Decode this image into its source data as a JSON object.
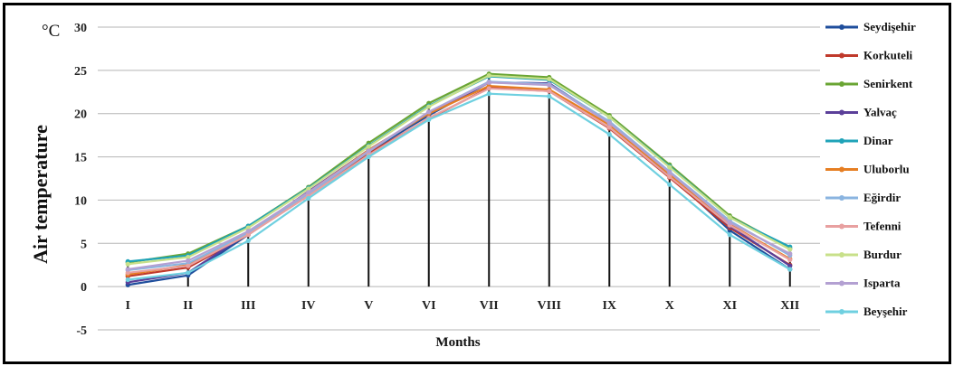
{
  "chart_data": {
    "type": "line",
    "title": "",
    "xlabel": "Months",
    "ylabel": "Air temperature",
    "yunit": "°C",
    "ylim": [
      -5,
      30
    ],
    "yticks": [
      -5,
      0,
      5,
      10,
      15,
      20,
      25,
      30
    ],
    "grid": "horizontal",
    "legend_position": "right",
    "categories": [
      "I",
      "II",
      "III",
      "IV",
      "V",
      "VI",
      "VII",
      "VIII",
      "IX",
      "X",
      "XI",
      "XII"
    ],
    "series": [
      {
        "name": "Seydişehir",
        "color": "#1f4e9c",
        "values": [
          0.2,
          1.3,
          6.0,
          10.8,
          15.6,
          19.8,
          23.6,
          23.5,
          18.9,
          12.9,
          6.5,
          2.0
        ]
      },
      {
        "name": "Korkuteli",
        "color": "#c0392b",
        "values": [
          1.2,
          2.2,
          6.0,
          10.7,
          15.4,
          19.4,
          23.0,
          22.6,
          18.3,
          12.6,
          6.8,
          2.5
        ]
      },
      {
        "name": "Senirkent",
        "color": "#6aa534",
        "values": [
          2.8,
          3.8,
          7.0,
          11.5,
          16.6,
          21.2,
          24.6,
          24.2,
          19.8,
          14.1,
          8.2,
          4.4
        ]
      },
      {
        "name": "Yalvaç",
        "color": "#5b3f99",
        "values": [
          0.5,
          1.6,
          6.2,
          11.0,
          15.8,
          20.0,
          23.6,
          23.5,
          19.0,
          13.0,
          7.0,
          2.4
        ]
      },
      {
        "name": "Dinar",
        "color": "#1fa3b8",
        "values": [
          2.9,
          3.6,
          7.0,
          11.4,
          16.3,
          20.9,
          24.3,
          23.9,
          19.6,
          13.9,
          8.0,
          4.6
        ]
      },
      {
        "name": "Uluborlu",
        "color": "#e67e22",
        "values": [
          1.4,
          2.5,
          6.3,
          10.9,
          15.8,
          20.0,
          23.2,
          22.8,
          18.7,
          13.0,
          7.2,
          3.2
        ]
      },
      {
        "name": "Eğirdir",
        "color": "#8ab4e0",
        "values": [
          1.9,
          2.7,
          6.2,
          10.7,
          15.6,
          20.2,
          23.7,
          23.4,
          19.1,
          13.3,
          7.6,
          3.6
        ]
      },
      {
        "name": "Tefenni",
        "color": "#e8a0a0",
        "values": [
          1.6,
          2.4,
          6.0,
          10.5,
          15.2,
          19.5,
          22.9,
          22.6,
          18.4,
          12.7,
          7.1,
          3.1
        ]
      },
      {
        "name": "Burdur",
        "color": "#c8e08a",
        "values": [
          2.6,
          3.4,
          6.8,
          11.3,
          16.2,
          20.8,
          24.4,
          24.0,
          19.6,
          13.8,
          8.0,
          4.3
        ]
      },
      {
        "name": "Isparta",
        "color": "#b3a0d2",
        "values": [
          2.0,
          3.0,
          6.4,
          10.9,
          15.7,
          20.2,
          23.6,
          23.3,
          18.9,
          13.2,
          7.4,
          3.8
        ]
      },
      {
        "name": "Beyşehir",
        "color": "#6fd0e0",
        "values": [
          0.8,
          1.6,
          5.3,
          10.2,
          15.0,
          19.3,
          22.3,
          22.0,
          17.6,
          11.8,
          6.0,
          2.0
        ]
      }
    ]
  }
}
